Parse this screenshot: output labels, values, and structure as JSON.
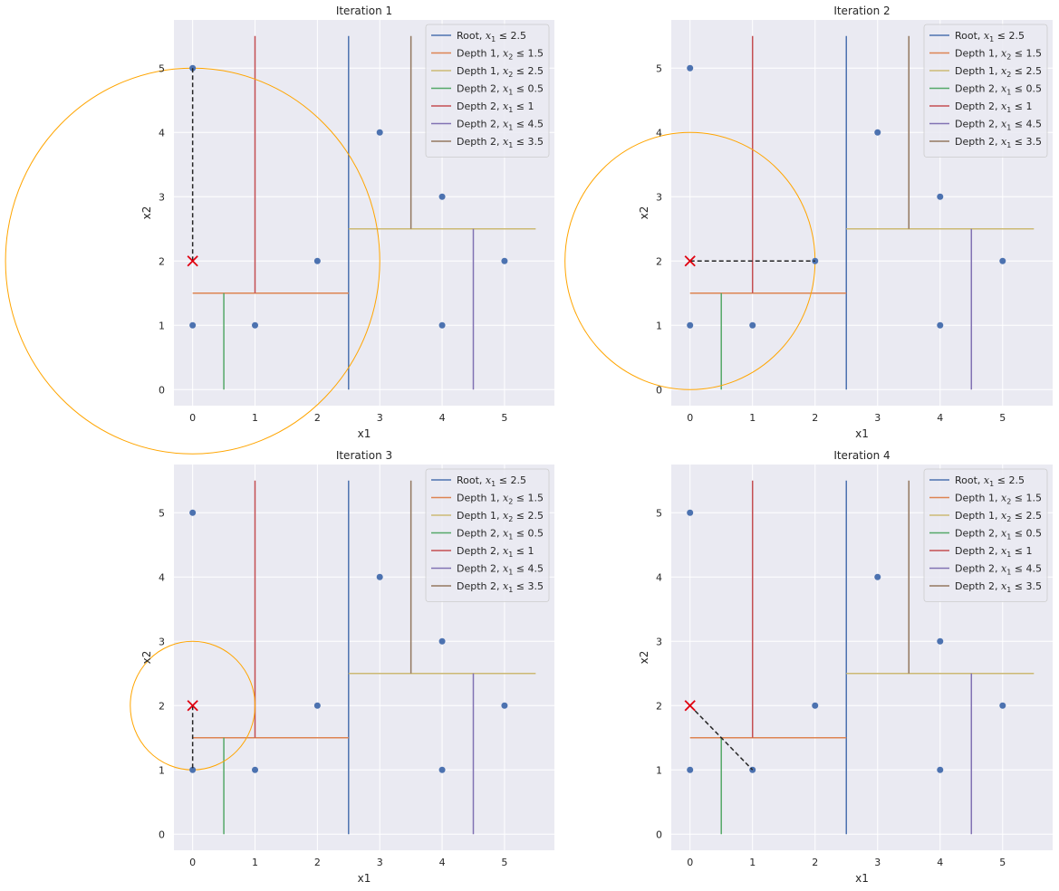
{
  "figure": {
    "background": "#ffffff",
    "axes_background": "#eaeaf2",
    "grid_color": "#ffffff"
  },
  "split_legend": [
    {
      "text": "Root, x₁ ≤ 2.5",
      "prefix": "Root, ",
      "cond": "2.5",
      "var": "x",
      "idx": "1",
      "color": "#4c72b0"
    },
    {
      "text": "Depth 1, x₂ ≤ 1.5",
      "prefix": "Depth 1, ",
      "cond": "1.5",
      "var": "x",
      "idx": "2",
      "color": "#dd8452"
    },
    {
      "text": "Depth 1, x₂ ≤ 2.5",
      "prefix": "Depth 1, ",
      "cond": "2.5",
      "var": "x",
      "idx": "2",
      "color": "#ccb974"
    },
    {
      "text": "Depth 2, x₁ ≤ 0.5",
      "prefix": "Depth 2, ",
      "cond": "0.5",
      "var": "x",
      "idx": "1",
      "color": "#55a868"
    },
    {
      "text": "Depth 2, x₁ ≤ 1",
      "prefix": "Depth 2, ",
      "cond": "1",
      "var": "x",
      "idx": "1",
      "color": "#c44e52"
    },
    {
      "text": "Depth 2, x₁ ≤ 4.5",
      "prefix": "Depth 2, ",
      "cond": "4.5",
      "var": "x",
      "idx": "1",
      "color": "#8172b3"
    },
    {
      "text": "Depth 2, x₁ ≤ 3.5",
      "prefix": "Depth 2, ",
      "cond": "3.5",
      "var": "x",
      "idx": "1",
      "color": "#937860"
    }
  ],
  "chart_data": [
    {
      "type": "scatter",
      "title": "Iteration 1",
      "xlabel": "x1",
      "ylabel": "x2",
      "xlim": [
        -0.3,
        5.8
      ],
      "ylim": [
        -0.25,
        5.75
      ],
      "xticks": [
        0,
        1,
        2,
        3,
        4,
        5
      ],
      "yticks": [
        0,
        1,
        2,
        3,
        4,
        5
      ],
      "grid": true,
      "legend_position": "top-right",
      "points": [
        [
          0,
          5
        ],
        [
          0,
          1
        ],
        [
          1,
          1
        ],
        [
          2,
          2
        ],
        [
          3,
          4
        ],
        [
          4,
          3
        ],
        [
          4,
          1
        ],
        [
          5,
          2
        ]
      ],
      "query": [
        0,
        2
      ],
      "nearest": [
        0,
        5
      ],
      "radius": 3,
      "splits": [
        {
          "dir": "v",
          "at": 2.5,
          "from": 0,
          "to": 5.5,
          "color": "#4c72b0"
        },
        {
          "dir": "h",
          "at": 1.5,
          "from": 0,
          "to": 2.5,
          "color": "#dd8452"
        },
        {
          "dir": "h",
          "at": 2.5,
          "from": 2.5,
          "to": 5.5,
          "color": "#ccb974"
        },
        {
          "dir": "v",
          "at": 0.5,
          "from": 0,
          "to": 1.5,
          "color": "#55a868"
        },
        {
          "dir": "v",
          "at": 1,
          "from": 1.5,
          "to": 5.5,
          "color": "#c44e52"
        },
        {
          "dir": "v",
          "at": 4.5,
          "from": 0,
          "to": 2.5,
          "color": "#8172b3"
        },
        {
          "dir": "v",
          "at": 3.5,
          "from": 2.5,
          "to": 5.5,
          "color": "#937860"
        }
      ]
    },
    {
      "type": "scatter",
      "title": "Iteration 2",
      "xlabel": "x1",
      "ylabel": "x2",
      "xlim": [
        -0.3,
        5.8
      ],
      "ylim": [
        -0.25,
        5.75
      ],
      "xticks": [
        0,
        1,
        2,
        3,
        4,
        5
      ],
      "yticks": [
        0,
        1,
        2,
        3,
        4,
        5
      ],
      "grid": true,
      "legend_position": "top-right",
      "points": [
        [
          0,
          5
        ],
        [
          0,
          1
        ],
        [
          1,
          1
        ],
        [
          2,
          2
        ],
        [
          3,
          4
        ],
        [
          4,
          3
        ],
        [
          4,
          1
        ],
        [
          5,
          2
        ]
      ],
      "query": [
        0,
        2
      ],
      "nearest": [
        2,
        2
      ],
      "radius": 2,
      "splits": [
        {
          "dir": "v",
          "at": 2.5,
          "from": 0,
          "to": 5.5,
          "color": "#4c72b0"
        },
        {
          "dir": "h",
          "at": 1.5,
          "from": 0,
          "to": 2.5,
          "color": "#dd8452"
        },
        {
          "dir": "h",
          "at": 2.5,
          "from": 2.5,
          "to": 5.5,
          "color": "#ccb974"
        },
        {
          "dir": "v",
          "at": 0.5,
          "from": 0,
          "to": 1.5,
          "color": "#55a868"
        },
        {
          "dir": "v",
          "at": 1,
          "from": 1.5,
          "to": 5.5,
          "color": "#c44e52"
        },
        {
          "dir": "v",
          "at": 4.5,
          "from": 0,
          "to": 2.5,
          "color": "#8172b3"
        },
        {
          "dir": "v",
          "at": 3.5,
          "from": 2.5,
          "to": 5.5,
          "color": "#937860"
        }
      ]
    },
    {
      "type": "scatter",
      "title": "Iteration 3",
      "xlabel": "x1",
      "ylabel": "x2",
      "xlim": [
        -0.3,
        5.8
      ],
      "ylim": [
        -0.25,
        5.75
      ],
      "xticks": [
        0,
        1,
        2,
        3,
        4,
        5
      ],
      "yticks": [
        0,
        1,
        2,
        3,
        4,
        5
      ],
      "grid": true,
      "legend_position": "top-right",
      "points": [
        [
          0,
          5
        ],
        [
          0,
          1
        ],
        [
          1,
          1
        ],
        [
          2,
          2
        ],
        [
          3,
          4
        ],
        [
          4,
          3
        ],
        [
          4,
          1
        ],
        [
          5,
          2
        ]
      ],
      "query": [
        0,
        2
      ],
      "nearest": [
        0,
        1
      ],
      "radius": 1,
      "splits": [
        {
          "dir": "v",
          "at": 2.5,
          "from": 0,
          "to": 5.5,
          "color": "#4c72b0"
        },
        {
          "dir": "h",
          "at": 1.5,
          "from": 0,
          "to": 2.5,
          "color": "#dd8452"
        },
        {
          "dir": "h",
          "at": 2.5,
          "from": 2.5,
          "to": 5.5,
          "color": "#ccb974"
        },
        {
          "dir": "v",
          "at": 0.5,
          "from": 0,
          "to": 1.5,
          "color": "#55a868"
        },
        {
          "dir": "v",
          "at": 1,
          "from": 1.5,
          "to": 5.5,
          "color": "#c44e52"
        },
        {
          "dir": "v",
          "at": 4.5,
          "from": 0,
          "to": 2.5,
          "color": "#8172b3"
        },
        {
          "dir": "v",
          "at": 3.5,
          "from": 2.5,
          "to": 5.5,
          "color": "#937860"
        }
      ]
    },
    {
      "type": "scatter",
      "title": "Iteration 4",
      "xlabel": "x1",
      "ylabel": "x2",
      "xlim": [
        -0.3,
        5.8
      ],
      "ylim": [
        -0.25,
        5.75
      ],
      "xticks": [
        0,
        1,
        2,
        3,
        4,
        5
      ],
      "yticks": [
        0,
        1,
        2,
        3,
        4,
        5
      ],
      "grid": true,
      "legend_position": "top-right",
      "points": [
        [
          0,
          5
        ],
        [
          0,
          1
        ],
        [
          1,
          1
        ],
        [
          2,
          2
        ],
        [
          3,
          4
        ],
        [
          4,
          3
        ],
        [
          4,
          1
        ],
        [
          5,
          2
        ]
      ],
      "query": [
        0,
        2
      ],
      "nearest": [
        1,
        1
      ],
      "radius": null,
      "splits": [
        {
          "dir": "v",
          "at": 2.5,
          "from": 0,
          "to": 5.5,
          "color": "#4c72b0"
        },
        {
          "dir": "h",
          "at": 1.5,
          "from": 0,
          "to": 2.5,
          "color": "#dd8452"
        },
        {
          "dir": "h",
          "at": 2.5,
          "from": 2.5,
          "to": 5.5,
          "color": "#ccb974"
        },
        {
          "dir": "v",
          "at": 0.5,
          "from": 0,
          "to": 1.5,
          "color": "#55a868"
        },
        {
          "dir": "v",
          "at": 1,
          "from": 1.5,
          "to": 5.5,
          "color": "#c44e52"
        },
        {
          "dir": "v",
          "at": 4.5,
          "from": 0,
          "to": 2.5,
          "color": "#8172b3"
        },
        {
          "dir": "v",
          "at": 3.5,
          "from": 2.5,
          "to": 5.5,
          "color": "#937860"
        }
      ]
    }
  ],
  "style": {
    "point_color": "#4c72b0",
    "query_color": "#e0000f",
    "circle_color": "#ffa500",
    "link_color": "#262626"
  }
}
